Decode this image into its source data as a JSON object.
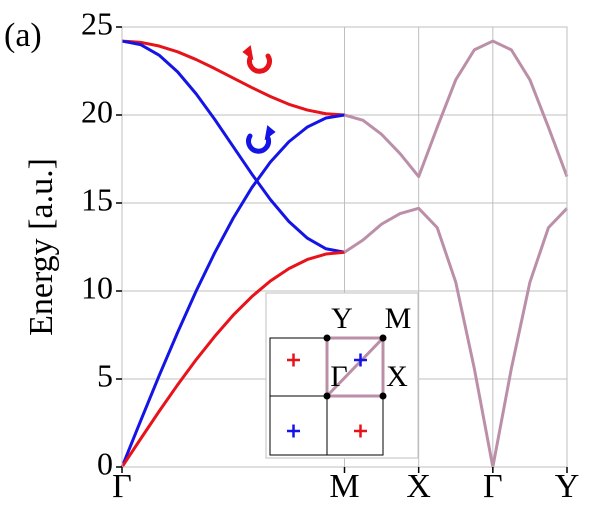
{
  "chart_data": {
    "type": "line",
    "panel_label": "(a)",
    "ylabel": "Energy [a.u.]",
    "xlim": [
      0,
      6
    ],
    "xticks": [
      {
        "value": 0,
        "label": "Γ"
      },
      {
        "value": 3,
        "label": "M"
      },
      {
        "value": 4,
        "label": "X"
      },
      {
        "value": 5,
        "label": "Γ"
      },
      {
        "value": 6,
        "label": "Y"
      }
    ],
    "ylim": [
      0,
      25
    ],
    "yticks": [
      0,
      5,
      10,
      15,
      20,
      25
    ],
    "grid": true,
    "series": [
      {
        "color": "#e8121a",
        "x": [
          0,
          0.25,
          0.5,
          0.75,
          1,
          1.25,
          1.5,
          1.75,
          2,
          2.25,
          2.5,
          2.75,
          3
        ],
        "values": [
          24.2,
          24.13,
          23.92,
          23.59,
          23.15,
          22.64,
          22.1,
          21.56,
          21.05,
          20.61,
          20.28,
          20.07,
          20.0
        ]
      },
      {
        "color": "#1414e6",
        "x": [
          0,
          0.25,
          0.5,
          0.75,
          1,
          1.25,
          1.5,
          1.75,
          2,
          2.25,
          2.5,
          2.75,
          3
        ],
        "values": [
          24.2,
          24.0,
          23.4,
          22.45,
          21.2,
          19.75,
          18.2,
          16.65,
          15.2,
          13.95,
          13.0,
          12.4,
          12.2
        ]
      },
      {
        "color": "#1414e6",
        "x": [
          0,
          0.25,
          0.5,
          0.75,
          1,
          1.25,
          1.5,
          1.75,
          2,
          2.25,
          2.5,
          2.75,
          3
        ],
        "values": [
          0,
          2.61,
          5.18,
          7.65,
          10.0,
          12.17,
          14.14,
          15.87,
          17.32,
          18.48,
          19.32,
          19.83,
          20.0
        ]
      },
      {
        "color": "#e8121a",
        "x": [
          0,
          0.25,
          0.5,
          0.75,
          1,
          1.25,
          1.5,
          1.75,
          2,
          2.25,
          2.5,
          2.75,
          3
        ],
        "values": [
          0,
          1.59,
          3.16,
          4.67,
          6.1,
          7.42,
          8.63,
          9.68,
          10.57,
          11.27,
          11.79,
          12.1,
          12.2
        ]
      },
      {
        "color": "#bb8fa8",
        "x": [
          3,
          3.25,
          3.5,
          3.75,
          4,
          4.25,
          4.5,
          4.75,
          5,
          5.25,
          5.5,
          5.75,
          6
        ],
        "values": [
          20.0,
          19.7,
          18.9,
          17.8,
          16.5,
          19.3,
          22.0,
          23.7,
          24.2,
          23.7,
          22.0,
          19.3,
          16.5
        ]
      },
      {
        "color": "#bb8fa8",
        "x": [
          3,
          3.25,
          3.5,
          3.75,
          4,
          4.25,
          4.5,
          4.75,
          5,
          5.25,
          5.5,
          5.75,
          6
        ],
        "values": [
          12.2,
          12.9,
          13.8,
          14.4,
          14.7,
          13.6,
          10.5,
          5.6,
          0,
          5.6,
          10.5,
          13.6,
          14.7
        ]
      }
    ],
    "inset_labels": [
      "Y",
      "M",
      "Γ",
      "X"
    ]
  }
}
